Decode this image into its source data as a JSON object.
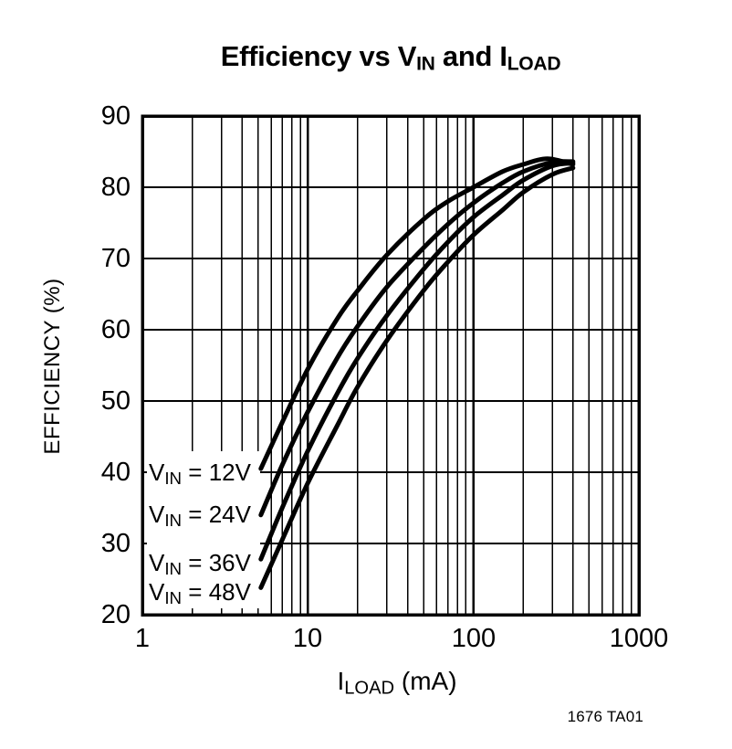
{
  "title": {
    "part1": "Efficiency vs V",
    "sub1": "IN",
    "part2": " and I",
    "sub2": "LOAD"
  },
  "y_axis": {
    "title": "EFFICIENCY (%)",
    "ticks": [
      "90",
      "80",
      "70",
      "60",
      "50",
      "40",
      "30",
      "20"
    ]
  },
  "x_axis": {
    "title_main": "I",
    "title_sub": "LOAD",
    "title_suffix": " (mA)",
    "ticks": [
      "1",
      "10",
      "100",
      "1000"
    ]
  },
  "curve_labels": [
    {
      "prefix": "V",
      "sub": "IN",
      "suffix": " = 12V"
    },
    {
      "prefix": "V",
      "sub": "IN",
      "suffix": " = 24V"
    },
    {
      "prefix": "V",
      "sub": "IN",
      "suffix": " = 36V"
    },
    {
      "prefix": "V",
      "sub": "IN",
      "suffix": " = 48V"
    }
  ],
  "footer_note": "1676 TA01",
  "colors": {
    "ink": "#000000",
    "background": "#ffffff"
  },
  "chart_data": {
    "type": "line",
    "title": "Efficiency vs VIN and ILOAD",
    "xlabel": "ILOAD (mA)",
    "ylabel": "EFFICIENCY (%)",
    "x_scale": "log",
    "xlim": [
      1,
      1000
    ],
    "ylim": [
      20,
      90
    ],
    "y_tick_step": 10,
    "grid": true,
    "legend_position": "inline-left",
    "series": [
      {
        "name": "VIN = 12V",
        "points": [
          [
            5.2,
            40.5
          ],
          [
            7,
            47
          ],
          [
            10,
            54.5
          ],
          [
            15,
            61.5
          ],
          [
            20,
            65.5
          ],
          [
            30,
            70.5
          ],
          [
            50,
            75.5
          ],
          [
            70,
            78
          ],
          [
            100,
            80
          ],
          [
            150,
            82.2
          ],
          [
            200,
            83.2
          ],
          [
            280,
            84
          ],
          [
            400,
            83.2
          ]
        ]
      },
      {
        "name": "VIN = 24V",
        "points": [
          [
            5.2,
            34
          ],
          [
            7,
            41
          ],
          [
            10,
            48.5
          ],
          [
            15,
            56
          ],
          [
            20,
            60.5
          ],
          [
            30,
            66
          ],
          [
            50,
            71.5
          ],
          [
            70,
            74.8
          ],
          [
            100,
            77.8
          ],
          [
            150,
            80.6
          ],
          [
            200,
            82.2
          ],
          [
            300,
            83.5
          ],
          [
            400,
            83.6
          ]
        ]
      },
      {
        "name": "VIN = 36V",
        "points": [
          [
            5.2,
            27.8
          ],
          [
            7,
            35
          ],
          [
            10,
            43
          ],
          [
            15,
            51
          ],
          [
            20,
            56
          ],
          [
            30,
            62
          ],
          [
            50,
            68.5
          ],
          [
            70,
            72.3
          ],
          [
            100,
            75.8
          ],
          [
            150,
            78.9
          ],
          [
            200,
            81
          ],
          [
            300,
            83
          ],
          [
            400,
            83.4
          ]
        ]
      },
      {
        "name": "VIN = 48V",
        "points": [
          [
            5.2,
            23.8
          ],
          [
            7,
            30.5
          ],
          [
            10,
            38.5
          ],
          [
            15,
            46.5
          ],
          [
            20,
            52
          ],
          [
            30,
            58.5
          ],
          [
            50,
            65.5
          ],
          [
            70,
            69.5
          ],
          [
            100,
            73.3
          ],
          [
            150,
            76.8
          ],
          [
            200,
            79.3
          ],
          [
            300,
            81.8
          ],
          [
            400,
            82.7
          ]
        ]
      }
    ]
  }
}
